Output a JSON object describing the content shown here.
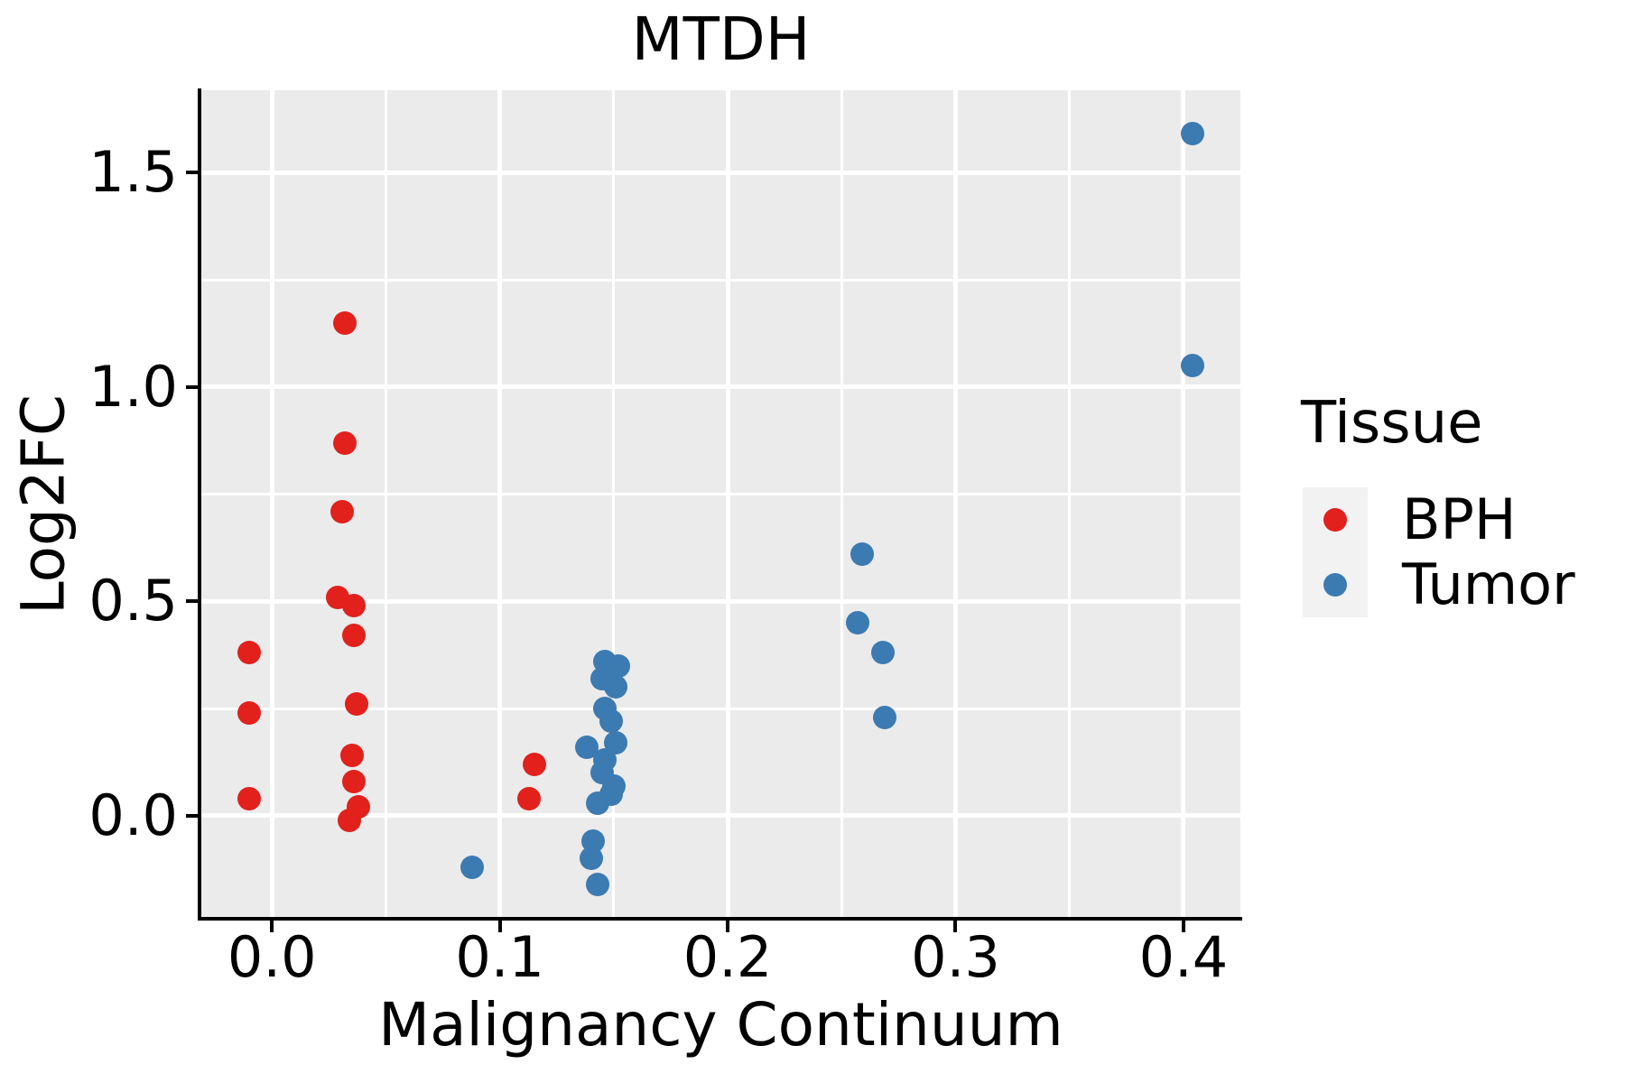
{
  "title": "MTDH",
  "colors": {
    "bph": "#E2201C",
    "tumor": "#3C7AB2",
    "panel_background": "#EBEBEB",
    "gridline": "#FFFFFF",
    "axis": "#000000",
    "text": "#000000",
    "legend_key_background": "#F2F2F2",
    "figure_background": "#FFFFFF"
  },
  "legend": {
    "title": "Tissue",
    "items": [
      {
        "label": "BPH",
        "color": "#E2201C"
      },
      {
        "label": "Tumor",
        "color": "#3C7AB2"
      }
    ]
  },
  "chart_data": {
    "type": "scatter",
    "title": "MTDH",
    "xlabel": "Malignancy Continuum",
    "ylabel": "Log2FC",
    "xlim": [
      -0.031,
      0.425
    ],
    "ylim": [
      -0.24,
      1.692
    ],
    "x_ticks": [
      0.0,
      0.1,
      0.2,
      0.3,
      0.4
    ],
    "x_tick_labels": [
      "0.0",
      "0.1",
      "0.2",
      "0.3",
      "0.4"
    ],
    "y_ticks": [
      0.0,
      0.5,
      1.0,
      1.5
    ],
    "y_tick_labels": [
      "0.0",
      "0.5",
      "1.0",
      "1.5"
    ],
    "x_minor_ticks": [
      0.05,
      0.15,
      0.25,
      0.35
    ],
    "y_minor_ticks": [
      0.25,
      0.75,
      1.25
    ],
    "grid": true,
    "legend_position": "right",
    "series": [
      {
        "name": "BPH",
        "color": "#E2201C",
        "points": [
          [
            -0.01,
            0.38
          ],
          [
            -0.01,
            0.24
          ],
          [
            -0.01,
            0.04
          ],
          [
            0.032,
            1.15
          ],
          [
            0.032,
            0.87
          ],
          [
            0.031,
            0.71
          ],
          [
            0.029,
            0.51
          ],
          [
            0.036,
            0.49
          ],
          [
            0.036,
            0.42
          ],
          [
            0.037,
            0.26
          ],
          [
            0.035,
            0.14
          ],
          [
            0.036,
            0.08
          ],
          [
            0.038,
            0.02
          ],
          [
            0.034,
            -0.01
          ],
          [
            0.115,
            0.12
          ],
          [
            0.113,
            0.04
          ]
        ]
      },
      {
        "name": "Tumor",
        "color": "#3C7AB2",
        "points": [
          [
            0.088,
            -0.12
          ],
          [
            0.146,
            0.36
          ],
          [
            0.152,
            0.35
          ],
          [
            0.145,
            0.32
          ],
          [
            0.151,
            0.3
          ],
          [
            0.146,
            0.25
          ],
          [
            0.149,
            0.22
          ],
          [
            0.138,
            0.16
          ],
          [
            0.151,
            0.17
          ],
          [
            0.146,
            0.13
          ],
          [
            0.145,
            0.1
          ],
          [
            0.15,
            0.07
          ],
          [
            0.149,
            0.05
          ],
          [
            0.143,
            0.03
          ],
          [
            0.141,
            -0.06
          ],
          [
            0.14,
            -0.1
          ],
          [
            0.143,
            -0.16
          ],
          [
            0.259,
            0.61
          ],
          [
            0.257,
            0.45
          ],
          [
            0.268,
            0.38
          ],
          [
            0.269,
            0.23
          ],
          [
            0.404,
            1.59
          ],
          [
            0.404,
            1.05
          ]
        ]
      }
    ]
  }
}
